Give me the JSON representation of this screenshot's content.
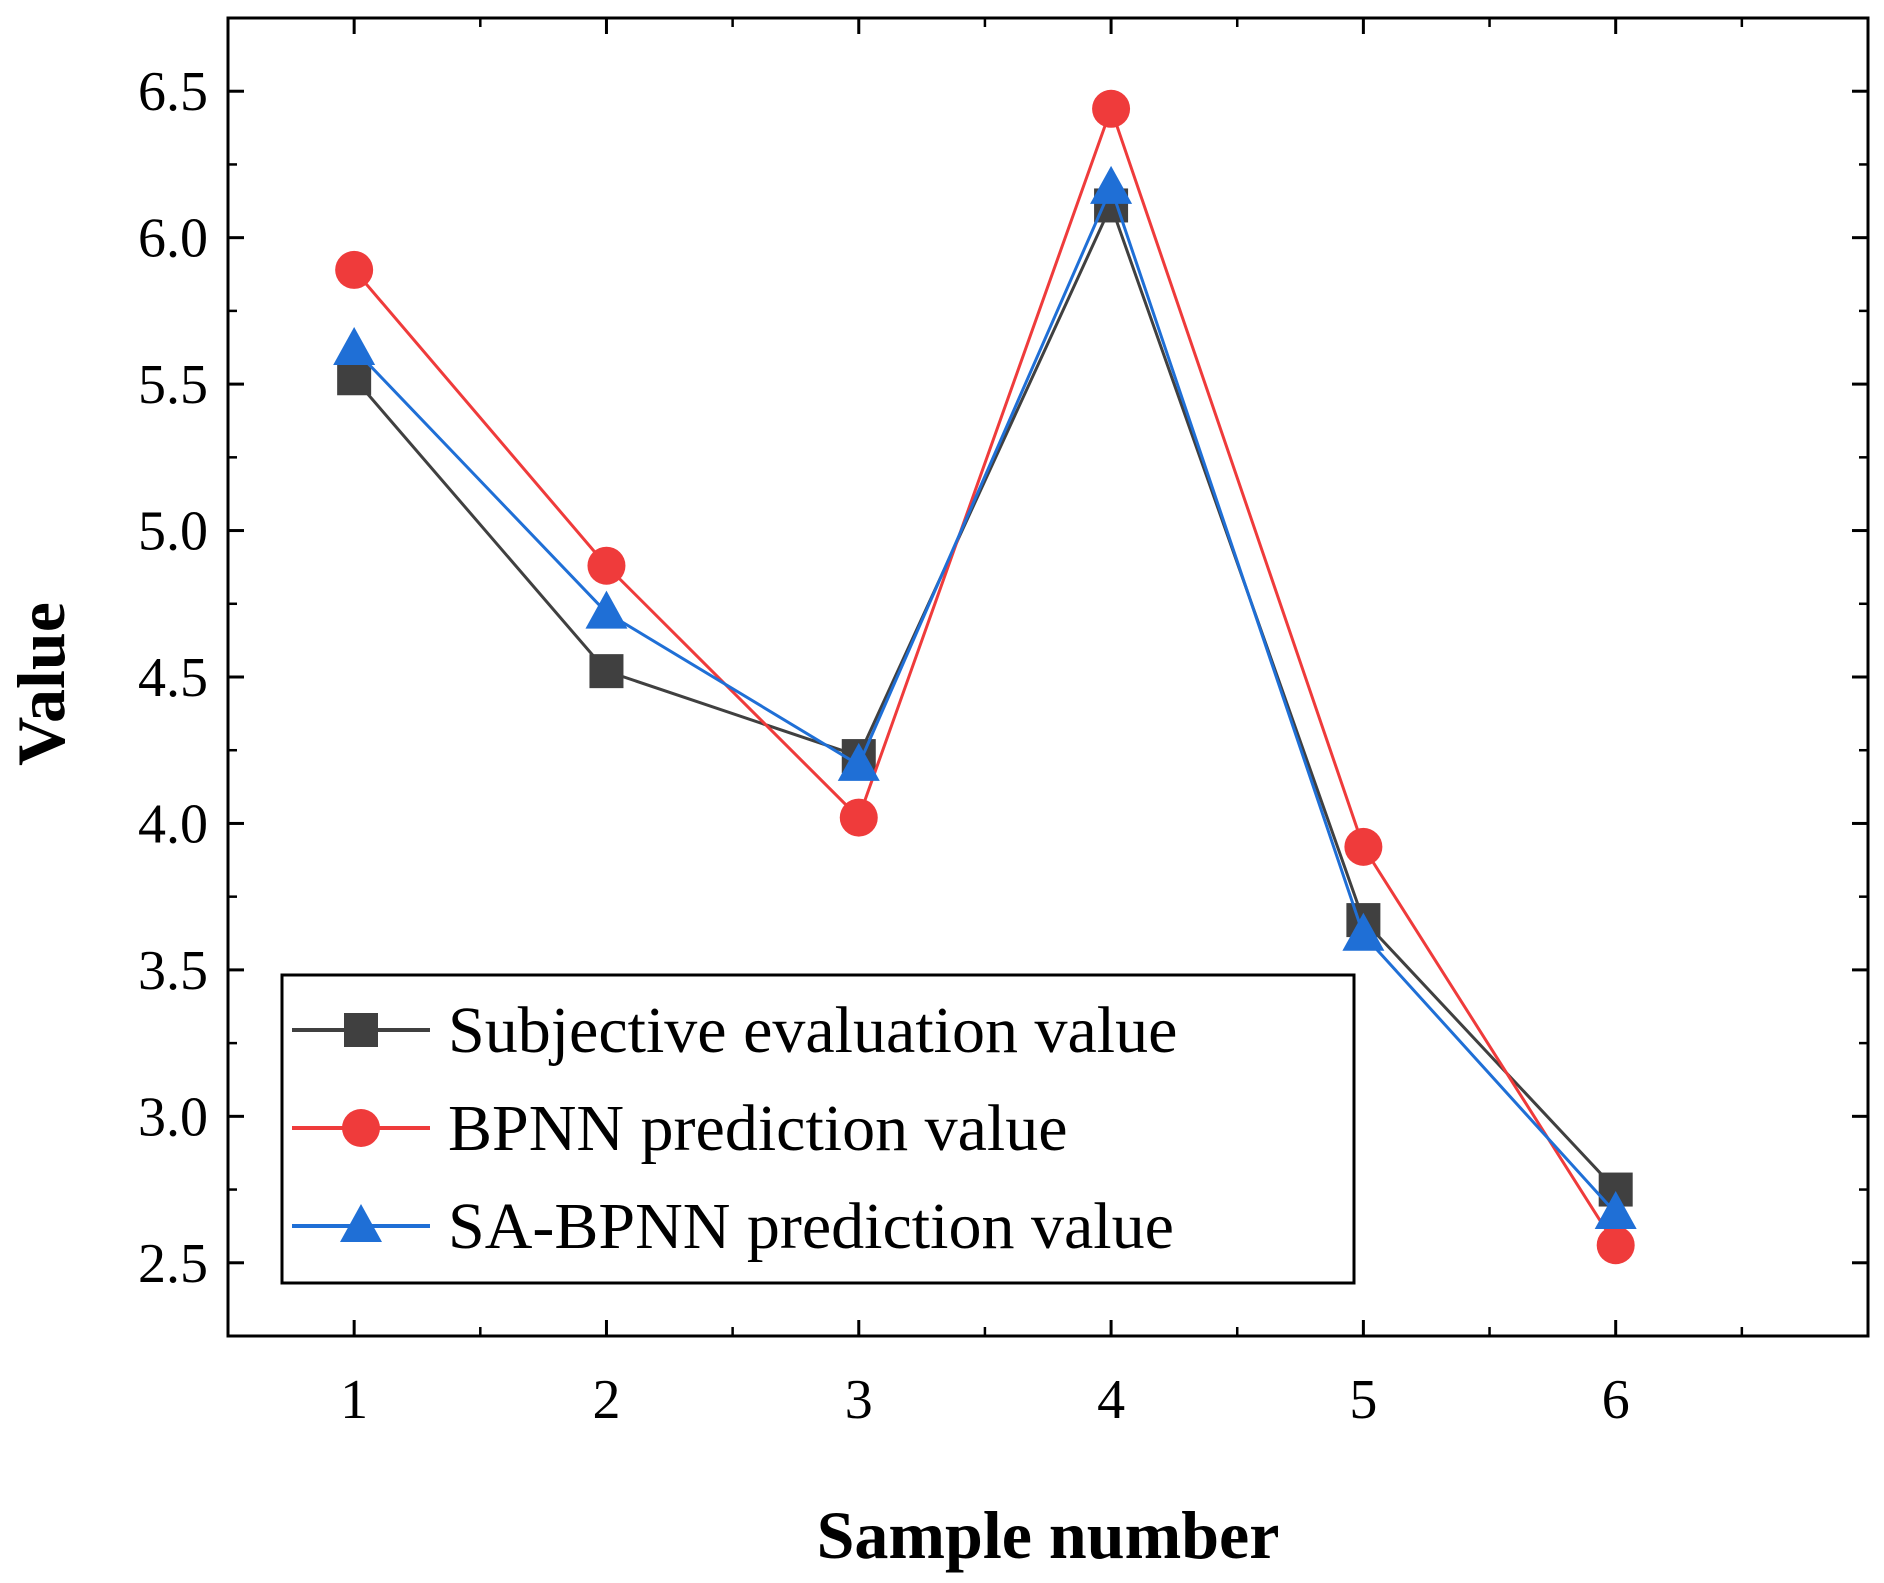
{
  "chart_data": {
    "type": "line",
    "title": "",
    "xlabel": "Sample number",
    "ylabel": "Value",
    "x": [
      1,
      2,
      3,
      4,
      5,
      6
    ],
    "xlim": [
      0.5,
      7.0
    ],
    "ylim": [
      2.25,
      6.75
    ],
    "xticks": [
      "1",
      "2",
      "3",
      "4",
      "5",
      "6"
    ],
    "yticks": [
      "2.5",
      "3.0",
      "3.5",
      "4.0",
      "4.5",
      "5.0",
      "5.5",
      "6.0",
      "6.5"
    ],
    "grid": false,
    "legend_position": "bottom-left",
    "series": [
      {
        "name": "Subjective evaluation value",
        "color": "#404040",
        "marker": "square",
        "values": [
          5.52,
          4.52,
          4.23,
          6.11,
          3.67,
          2.75
        ]
      },
      {
        "name": "BPNN prediction value",
        "color": "#ef3b3b",
        "marker": "circle",
        "values": [
          5.89,
          4.88,
          4.02,
          6.44,
          3.92,
          2.56
        ]
      },
      {
        "name": "SA-BPNN prediction value",
        "color": "#1f6fd6",
        "marker": "triangle",
        "values": [
          5.62,
          4.72,
          4.2,
          6.17,
          3.62,
          2.67
        ]
      }
    ]
  }
}
